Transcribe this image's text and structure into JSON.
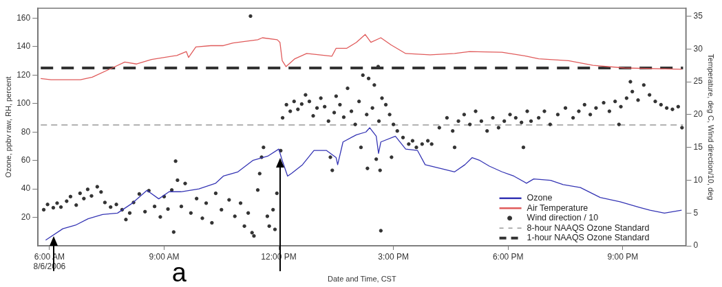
{
  "chart_data": {
    "type": "line",
    "xlabel": "Date and Time, CST",
    "ylabel": "Ozone, ppbv raw, RH, percent",
    "y2label": "Temperature, deg C, Wind direction/10, deg",
    "xlim": [
      5.7,
      22.65
    ],
    "xticks": [
      {
        "value": 6,
        "label": "6:00 AM\n8/6/2006"
      },
      {
        "value": 9,
        "label": "9:00 AM"
      },
      {
        "value": 12,
        "label": "12:00 PM"
      },
      {
        "value": 15,
        "label": "3:00 PM"
      },
      {
        "value": 18,
        "label": "6:00 PM"
      },
      {
        "value": 21,
        "label": "9:00 PM"
      }
    ],
    "ylim": [
      0,
      167
    ],
    "yticks": [
      20,
      40,
      60,
      80,
      100,
      120,
      140,
      160
    ],
    "y2lim": [
      0,
      36.2
    ],
    "y2ticks": [
      0,
      5,
      10,
      15,
      20,
      25,
      30,
      35
    ],
    "grid": false,
    "legend": "bottom right",
    "annotations": [
      "a"
    ],
    "ref_lines": [
      {
        "axis": "y",
        "value": 85,
        "label": "8-hour NAAQS Ozone Standard",
        "color": "#999999",
        "line_style": "dashed"
      },
      {
        "axis": "y",
        "value": 125,
        "label": "1-hour NAAQS Ozone Standard",
        "color": "#333333",
        "line_style": "dashed"
      }
    ],
    "series": [
      {
        "name": "Ozone",
        "color": "#3434b4",
        "marker": "none",
        "x": [
          5.9,
          6.35,
          6.68,
          7.01,
          7.39,
          7.78,
          8.17,
          8.55,
          8.86,
          9.13,
          9.44,
          9.91,
          10.35,
          10.55,
          10.93,
          11.32,
          11.71,
          12.0,
          12.09,
          12.23,
          12.34,
          12.62,
          12.92,
          13.25,
          13.5,
          13.54,
          13.68,
          14.03,
          14.28,
          14.38,
          14.55,
          14.61,
          14.67,
          15.05,
          15.32,
          15.63,
          15.83,
          16.29,
          16.6,
          16.87,
          17.06,
          17.26,
          17.51,
          17.84,
          18.15,
          18.48,
          18.67,
          19.11,
          19.44,
          19.89,
          20.41,
          20.93,
          21.44,
          21.71,
          22.09,
          22.54
        ],
        "values": [
          4,
          12,
          14.5,
          19,
          22,
          23,
          30,
          39,
          33,
          38,
          38,
          40,
          44,
          49,
          52,
          60,
          63,
          68,
          60,
          49,
          51,
          57,
          67,
          67,
          62,
          57,
          73,
          78,
          80,
          83,
          77,
          65,
          73,
          77,
          68,
          67,
          57,
          54,
          52,
          57,
          62,
          60,
          56,
          52,
          49,
          44,
          47,
          46,
          43,
          41,
          34,
          31,
          27,
          25,
          23,
          25
        ]
      },
      {
        "name": "Air Temperature",
        "axis": "y2",
        "color": "#e05a5a",
        "marker": "none",
        "x": [
          5.77,
          6.04,
          6.81,
          7.12,
          7.64,
          7.97,
          8.28,
          8.67,
          9.33,
          9.58,
          9.64,
          9.83,
          10.22,
          10.55,
          10.8,
          11.45,
          11.57,
          11.96,
          12.03,
          12.09,
          12.19,
          12.42,
          12.73,
          13.39,
          13.5,
          13.78,
          14.03,
          14.26,
          14.41,
          14.67,
          14.94,
          15.32,
          15.96,
          16.6,
          16.99,
          17.84,
          18.48,
          18.8,
          19.58,
          20.22,
          21.05,
          22.54
        ],
        "values": [
          25.5,
          25.3,
          25.3,
          25.7,
          27.1,
          28.0,
          27.7,
          28.4,
          29.0,
          29.6,
          28.7,
          30.3,
          30.5,
          30.5,
          30.9,
          31.4,
          31.7,
          31.4,
          31.0,
          28.2,
          27.3,
          28.5,
          29.3,
          28.9,
          30.1,
          30.1,
          31.0,
          32.2,
          31.0,
          31.7,
          30.6,
          29.3,
          29.1,
          29.3,
          29.6,
          29.5,
          28.9,
          28.5,
          28.2,
          27.5,
          27.1,
          26.9
        ]
      },
      {
        "name": "Wind direction / 10",
        "type": "scatter",
        "axis": "y2",
        "color": "#333333",
        "marker": "circle",
        "x": [
          5.85,
          5.95,
          6.1,
          6.2,
          6.3,
          6.45,
          6.55,
          6.7,
          6.8,
          6.9,
          7.0,
          7.1,
          7.25,
          7.35,
          7.45,
          7.6,
          7.75,
          7.9,
          8.0,
          8.1,
          8.2,
          8.35,
          8.5,
          8.6,
          8.75,
          8.9,
          9.0,
          9.1,
          9.2,
          9.25,
          9.3,
          9.35,
          9.45,
          9.55,
          9.7,
          9.85,
          10.0,
          10.1,
          10.25,
          10.35,
          10.5,
          10.7,
          10.85,
          11.0,
          11.1,
          11.2,
          11.26,
          11.3,
          11.35,
          11.45,
          11.5,
          11.55,
          11.6,
          11.7,
          11.75,
          11.85,
          11.9,
          11.95,
          12.05,
          12.1,
          12.2,
          12.3,
          12.4,
          12.5,
          12.6,
          12.7,
          12.8,
          12.9,
          13.0,
          13.1,
          13.2,
          13.3,
          13.35,
          13.4,
          13.45,
          13.5,
          13.6,
          13.7,
          13.8,
          13.9,
          14.0,
          14.1,
          14.15,
          14.2,
          14.3,
          14.32,
          14.35,
          14.45,
          14.5,
          14.55,
          14.6,
          14.62,
          14.65,
          14.67,
          14.7,
          14.8,
          14.9,
          14.95,
          15.0,
          15.1,
          15.25,
          15.4,
          15.5,
          15.6,
          15.75,
          15.9,
          16.0,
          16.2,
          16.4,
          16.55,
          16.6,
          16.7,
          16.85,
          17.0,
          17.15,
          17.3,
          17.45,
          17.6,
          17.75,
          17.9,
          18.05,
          18.2,
          18.35,
          18.4,
          18.5,
          18.6,
          18.8,
          18.95,
          19.1,
          19.3,
          19.5,
          19.7,
          19.85,
          20.0,
          20.15,
          20.3,
          20.5,
          20.65,
          20.8,
          20.9,
          20.95,
          21.1,
          21.2,
          21.25,
          21.4,
          21.55,
          21.7,
          21.85,
          22.0,
          22.15,
          22.3,
          22.45,
          22.55
        ],
        "values": [
          5.5,
          6.3,
          5.8,
          6.5,
          5.9,
          6.8,
          7.5,
          6.2,
          8.0,
          7.2,
          8.6,
          7.6,
          9.0,
          8.2,
          6.6,
          5.9,
          6.3,
          5.5,
          4.0,
          5.0,
          6.6,
          7.9,
          5.2,
          8.4,
          6.0,
          4.4,
          7.5,
          5.6,
          8.5,
          2.1,
          12.9,
          10.0,
          6.0,
          9.5,
          5.0,
          7.2,
          4.2,
          6.5,
          3.5,
          8.0,
          5.5,
          7.0,
          4.5,
          6.5,
          3.0,
          5.0,
          35.0,
          2.0,
          1.5,
          8.5,
          11.0,
          13.5,
          15.0,
          4.5,
          3.0,
          5.5,
          2.5,
          8.0,
          14.5,
          19.5,
          21.5,
          20.5,
          22.0,
          20.8,
          21.6,
          23.0,
          22.0,
          19.8,
          21.0,
          22.5,
          21.2,
          19.0,
          13.5,
          11.5,
          20.3,
          22.8,
          21.5,
          19.6,
          24.0,
          20.5,
          18.5,
          22.0,
          15.0,
          26.0,
          20.0,
          11.8,
          25.5,
          21.0,
          24.5,
          13.2,
          27.3,
          19.0,
          11.5,
          2.3,
          22.5,
          21.5,
          20.0,
          13.5,
          18.5,
          17.5,
          16.5,
          15.5,
          16.0,
          15.0,
          15.5,
          16.0,
          15.5,
          18.0,
          19.5,
          17.5,
          15.0,
          19.0,
          20.0,
          18.5,
          20.5,
          19.0,
          17.5,
          19.5,
          18.0,
          19.0,
          20.0,
          19.5,
          18.8,
          15.0,
          20.5,
          19.0,
          19.5,
          20.5,
          18.5,
          20.0,
          21.0,
          19.5,
          20.5,
          21.5,
          20.0,
          21.0,
          21.8,
          20.5,
          22.0,
          18.5,
          21.2,
          22.5,
          25.0,
          23.5,
          22.2,
          24.5,
          23.0,
          22.0,
          21.5,
          21.0,
          20.8,
          21.2,
          18.0
        ]
      }
    ]
  }
}
